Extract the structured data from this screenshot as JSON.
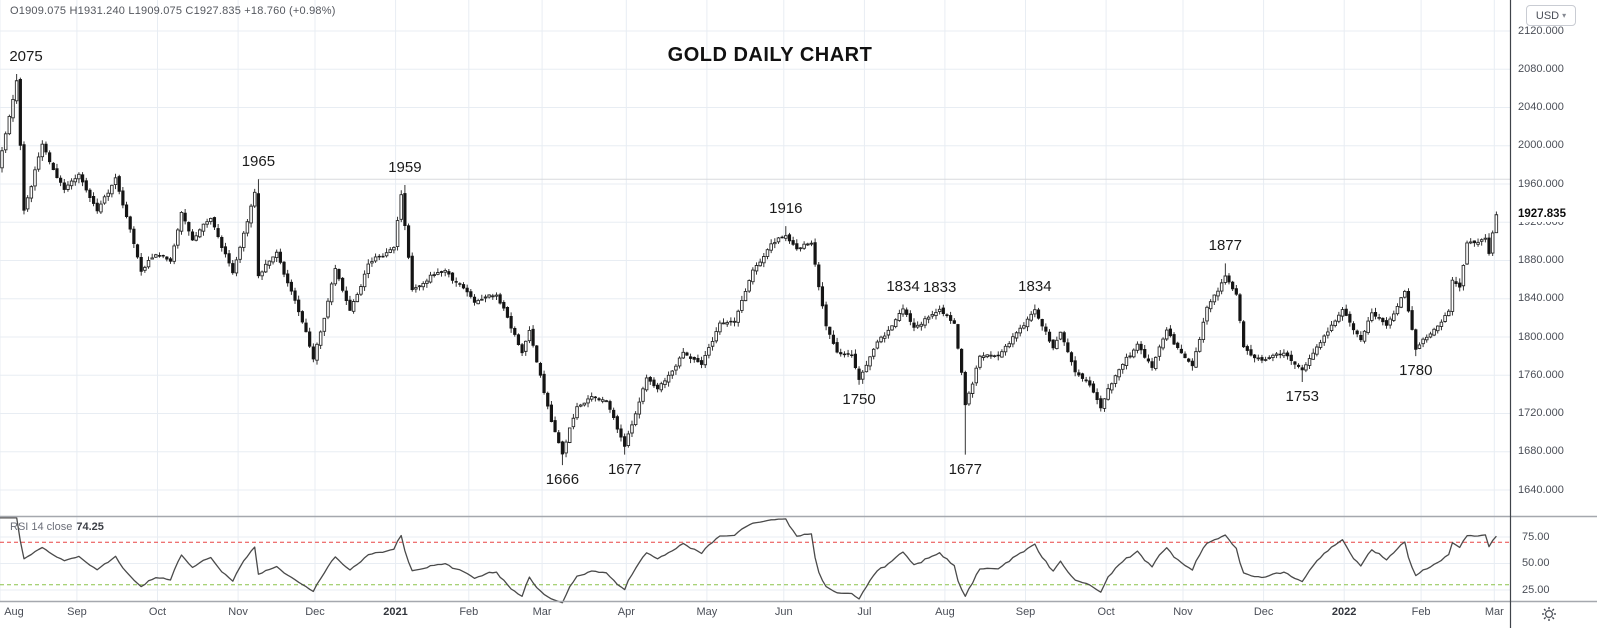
{
  "header": {
    "ohlc_legend": "O1909.075 H1931.240 L1909.075 C1927.835 +18.760 (+0.98%)",
    "title": "GOLD DAILY CHART"
  },
  "price_axis": {
    "currency": "USD",
    "ticks": [
      "2120.000",
      "2080.000",
      "2040.000",
      "2000.000",
      "1960.000",
      "1920.000",
      "1880.000",
      "1840.000",
      "1800.000",
      "1760.000",
      "1720.000",
      "1680.000",
      "1640.000"
    ],
    "current_price": "1927.835"
  },
  "time_axis": {
    "labels": [
      "Aug",
      "Sep",
      "Oct",
      "Nov",
      "Dec",
      "2021",
      "Feb",
      "Mar",
      "Apr",
      "May",
      "Jun",
      "Jul",
      "Aug",
      "Sep",
      "Oct",
      "Nov",
      "Dec",
      "2022",
      "Feb",
      "Mar"
    ]
  },
  "rsi_panel": {
    "title": "RSI 14 close",
    "value": "74.25",
    "ticks": [
      "75.00",
      "50.00",
      "25.00"
    ]
  },
  "chart_data": {
    "type": "candlestick",
    "title": "GOLD DAILY CHART",
    "currency": "USD",
    "y_axis": {
      "min": 1640,
      "max": 2120,
      "tick_step": 40,
      "grid": true
    },
    "x_range": [
      "2020-08-03",
      "2022-03-01"
    ],
    "gen_range": [
      "2020-07-06",
      "2022-03-01"
    ],
    "render_start_date": "2020-08-03",
    "holidays": [
      "2020-12-25",
      "2021-01-01",
      "2021-12-24"
    ],
    "months": [
      "Aug",
      "Sep",
      "Oct",
      "Nov",
      "Dec",
      "2021",
      "Feb",
      "Mar",
      "Apr",
      "May",
      "Jun",
      "Jul",
      "Aug",
      "Sep",
      "Oct",
      "Nov",
      "Dec",
      "2022",
      "Feb",
      "Mar"
    ],
    "last_bar": {
      "date": "2022-03-01",
      "open": 1909.075,
      "high": 1931.24,
      "low": 1909.075,
      "close": 1927.835,
      "change": "+18.760",
      "change_pct": "+0.98%"
    },
    "rsi": {
      "period": 14,
      "last": 74.25,
      "overbought": 70,
      "oversold": 30,
      "source": "close"
    },
    "horizontal_ray": {
      "date": "2020-11-09",
      "price": 1965
    },
    "close_anchors": [
      [
        "2020-07-06",
        1785
      ],
      [
        "2020-07-22",
        1860
      ],
      [
        "2020-07-31",
        1976
      ],
      [
        "2020-08-05",
        2030
      ],
      [
        "2020-08-07",
        2068
      ],
      [
        "2020-08-11",
        1932
      ],
      [
        "2020-08-18",
        2002
      ],
      [
        "2020-08-26",
        1955
      ],
      [
        "2020-09-01",
        1970
      ],
      [
        "2020-09-08",
        1932
      ],
      [
        "2020-09-15",
        1966
      ],
      [
        "2020-09-21",
        1912
      ],
      [
        "2020-09-24",
        1868
      ],
      [
        "2020-09-30",
        1886
      ],
      [
        "2020-10-06",
        1878
      ],
      [
        "2020-10-09",
        1930
      ],
      [
        "2020-10-14",
        1901
      ],
      [
        "2020-10-21",
        1924
      ],
      [
        "2020-10-29",
        1867
      ],
      [
        "2020-11-06",
        1951
      ],
      [
        "2020-11-09",
        1863
      ],
      [
        "2020-11-16",
        1888
      ],
      [
        "2020-11-23",
        1838
      ],
      [
        "2020-11-30",
        1777
      ],
      [
        "2020-12-08",
        1871
      ],
      [
        "2020-12-14",
        1828
      ],
      [
        "2020-12-21",
        1877
      ],
      [
        "2020-12-31",
        1895
      ],
      [
        "2021-01-05",
        1949
      ],
      [
        "2021-01-08",
        1849
      ],
      [
        "2021-01-13",
        1855
      ],
      [
        "2021-01-21",
        1870
      ],
      [
        "2021-01-29",
        1848
      ],
      [
        "2021-02-02",
        1837
      ],
      [
        "2021-02-10",
        1843
      ],
      [
        "2021-02-19",
        1784
      ],
      [
        "2021-02-23",
        1806
      ],
      [
        "2021-03-03",
        1711
      ],
      [
        "2021-03-08",
        1678
      ],
      [
        "2021-03-12",
        1727
      ],
      [
        "2021-03-18",
        1737
      ],
      [
        "2021-03-24",
        1733
      ],
      [
        "2021-03-31",
        1686
      ],
      [
        "2021-04-08",
        1758
      ],
      [
        "2021-04-13",
        1746
      ],
      [
        "2021-04-22",
        1784
      ],
      [
        "2021-04-29",
        1772
      ],
      [
        "2021-05-06",
        1815
      ],
      [
        "2021-05-12",
        1816
      ],
      [
        "2021-05-19",
        1870
      ],
      [
        "2021-05-26",
        1897
      ],
      [
        "2021-06-01",
        1905
      ],
      [
        "2021-06-04",
        1892
      ],
      [
        "2021-06-10",
        1898
      ],
      [
        "2021-06-16",
        1812
      ],
      [
        "2021-06-21",
        1783
      ],
      [
        "2021-06-25",
        1781
      ],
      [
        "2021-06-29",
        1756
      ],
      [
        "2021-07-06",
        1796
      ],
      [
        "2021-07-15",
        1829
      ],
      [
        "2021-07-20",
        1810
      ],
      [
        "2021-07-29",
        1828
      ],
      [
        "2021-08-04",
        1814
      ],
      [
        "2021-08-06",
        1763
      ],
      [
        "2021-08-09",
        1729
      ],
      [
        "2021-08-13",
        1780
      ],
      [
        "2021-08-20",
        1781
      ],
      [
        "2021-09-03",
        1828
      ],
      [
        "2021-09-10",
        1788
      ],
      [
        "2021-09-14",
        1805
      ],
      [
        "2021-09-20",
        1764
      ],
      [
        "2021-09-24",
        1750
      ],
      [
        "2021-09-29",
        1726
      ],
      [
        "2021-10-05",
        1760
      ],
      [
        "2021-10-13",
        1793
      ],
      [
        "2021-10-19",
        1769
      ],
      [
        "2021-10-25",
        1807
      ],
      [
        "2021-10-29",
        1783
      ],
      [
        "2021-11-03",
        1770
      ],
      [
        "2021-11-09",
        1831
      ],
      [
        "2021-11-16",
        1864
      ],
      [
        "2021-11-19",
        1845
      ],
      [
        "2021-11-23",
        1789
      ],
      [
        "2021-11-30",
        1775
      ],
      [
        "2021-12-08",
        1783
      ],
      [
        "2021-12-15",
        1766
      ],
      [
        "2021-12-21",
        1789
      ],
      [
        "2021-12-31",
        1828
      ],
      [
        "2022-01-07",
        1797
      ],
      [
        "2022-01-12",
        1826
      ],
      [
        "2022-01-18",
        1813
      ],
      [
        "2022-01-25",
        1848
      ],
      [
        "2022-01-28",
        1788
      ],
      [
        "2022-02-03",
        1804
      ],
      [
        "2022-02-10",
        1827
      ],
      [
        "2022-02-11",
        1859
      ],
      [
        "2022-02-15",
        1853
      ],
      [
        "2022-02-17",
        1898
      ],
      [
        "2022-02-22",
        1899
      ],
      [
        "2022-02-24",
        1903
      ],
      [
        "2022-02-25",
        1887
      ],
      [
        "2022-02-28",
        1909
      ],
      [
        "2022-03-01",
        1927.835
      ]
    ],
    "forced_extremes": [
      {
        "date": "2020-08-07",
        "type": "high",
        "price": 2075
      },
      {
        "date": "2020-11-09",
        "type": "high",
        "price": 1965
      },
      {
        "date": "2021-01-06",
        "type": "high",
        "price": 1959
      },
      {
        "date": "2021-03-08",
        "type": "low",
        "price": 1666
      },
      {
        "date": "2021-03-31",
        "type": "low",
        "price": 1677
      },
      {
        "date": "2021-06-01",
        "type": "high",
        "price": 1916
      },
      {
        "date": "2021-06-29",
        "type": "low",
        "price": 1750
      },
      {
        "date": "2021-07-15",
        "type": "high",
        "price": 1834
      },
      {
        "date": "2021-07-29",
        "type": "high",
        "price": 1833
      },
      {
        "date": "2021-08-09",
        "type": "low",
        "price": 1677
      },
      {
        "date": "2021-09-03",
        "type": "high",
        "price": 1834
      },
      {
        "date": "2021-11-16",
        "type": "high",
        "price": 1877
      },
      {
        "date": "2021-12-15",
        "type": "low",
        "price": 1753
      },
      {
        "date": "2022-01-28",
        "type": "low",
        "price": 1780
      }
    ],
    "annotations": [
      {
        "text": "2075",
        "date": "2020-08-07",
        "side": "above"
      },
      {
        "text": "1965",
        "date": "2020-11-09",
        "side": "above"
      },
      {
        "text": "1959",
        "date": "2021-01-06",
        "side": "above"
      },
      {
        "text": "1666",
        "date": "2021-03-08",
        "side": "below"
      },
      {
        "text": "1677",
        "date": "2021-03-31",
        "side": "below"
      },
      {
        "text": "1916",
        "date": "2021-06-01",
        "side": "above"
      },
      {
        "text": "1750",
        "date": "2021-06-29",
        "side": "below"
      },
      {
        "text": "1834",
        "date": "2021-07-15",
        "side": "above"
      },
      {
        "text": "1833",
        "date": "2021-07-29",
        "side": "above"
      },
      {
        "text": "1677",
        "date": "2021-08-09",
        "side": "below"
      },
      {
        "text": "1834",
        "date": "2021-09-03",
        "side": "above"
      },
      {
        "text": "1877",
        "date": "2021-11-16",
        "side": "above"
      },
      {
        "text": "1753",
        "date": "2021-12-15",
        "side": "below"
      },
      {
        "text": "1780",
        "date": "2022-01-28",
        "side": "below"
      }
    ],
    "colors": {
      "up_body": "#ffffff",
      "down_body": "#141414",
      "wick": "#1f1f1f",
      "body_stroke": "#2a2a2a",
      "grid": "#e8edf3",
      "separator": "#a5a8ae",
      "axis_border": "#3f434a",
      "rsi_line": "#4a4a4a",
      "overbought_line": "#e84545",
      "oversold_line": "#8bc34a",
      "ray": "#d8dadd"
    },
    "seed": 7
  }
}
